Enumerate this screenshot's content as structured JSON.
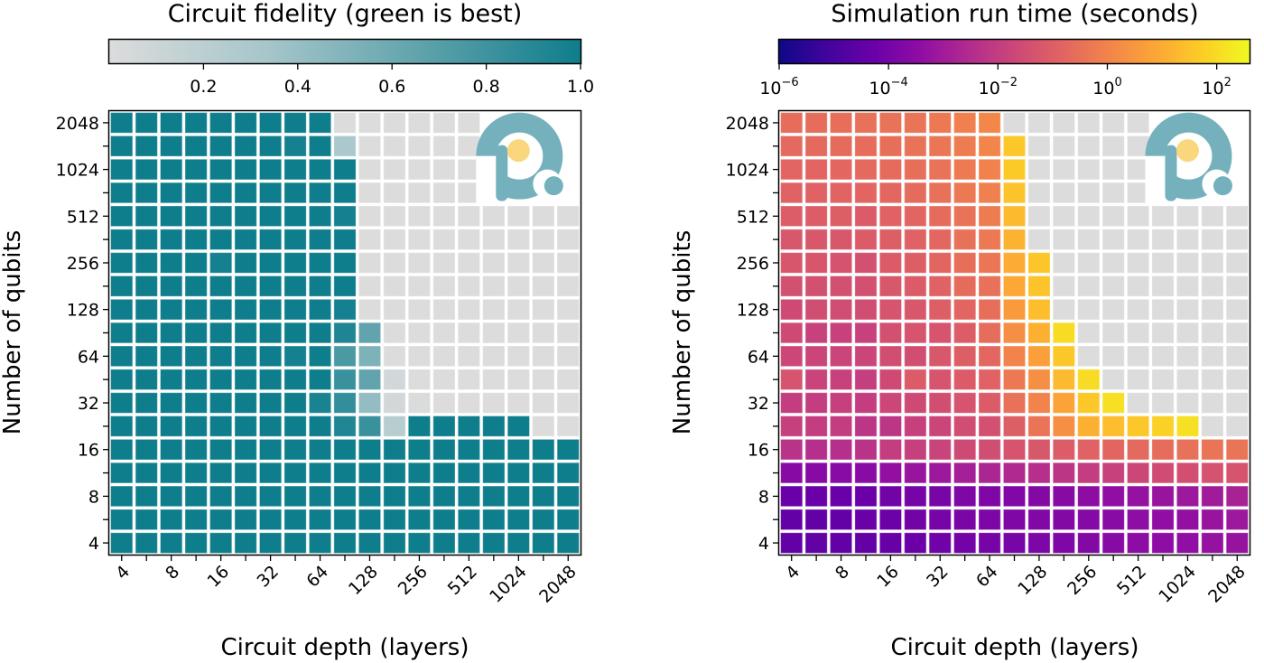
{
  "chart_data": [
    {
      "type": "heatmap",
      "title": "Circuit fidelity (green is best)",
      "xlabel": "Circuit depth (layers)",
      "ylabel": "Number of qubits",
      "x": [
        4,
        5.66,
        8,
        11.31,
        16,
        22.63,
        32,
        45.25,
        64,
        90.51,
        128,
        181.02,
        256,
        362.04,
        512,
        724.08,
        1024,
        1448.15,
        2048
      ],
      "y": [
        2048,
        1448.15,
        1024,
        724.08,
        512,
        362.04,
        256,
        181.02,
        128,
        90.51,
        64,
        45.25,
        32,
        22.63,
        16,
        11.31,
        8,
        5.66,
        4
      ],
      "xticks": [
        "4",
        "8",
        "16",
        "32",
        "64",
        "128",
        "256",
        "512",
        "1024",
        "2048"
      ],
      "yticks": [
        "2048",
        "1024",
        "512",
        "256",
        "128",
        "64",
        "32",
        "16",
        "8",
        "4"
      ],
      "missing_value_color": "#dcdcdc",
      "colorbar": {
        "label_position": "top",
        "scale": "linear",
        "range": [
          0.0,
          1.0
        ],
        "ticks": [
          "0.2",
          "0.4",
          "0.6",
          "0.8",
          "1.0"
        ],
        "tick_values": [
          0.2,
          0.4,
          0.6,
          0.8,
          1.0
        ],
        "colors": [
          "#dcdcdc",
          "#a6c6ca",
          "#5ea2ab",
          "#0e7d8c"
        ]
      },
      "values": [
        [
          1,
          1,
          1,
          1,
          1,
          1,
          1,
          1,
          1,
          null,
          null,
          null,
          null,
          null,
          null,
          "logo",
          "logo",
          "logo",
          "logo"
        ],
        [
          1,
          1,
          1,
          1,
          1,
          1,
          1,
          0.97,
          1,
          0.3,
          null,
          null,
          null,
          null,
          null,
          "logo",
          "logo",
          "logo",
          "logo"
        ],
        [
          1,
          1,
          1,
          1,
          1,
          1,
          1,
          1,
          1,
          1,
          null,
          null,
          null,
          null,
          null,
          "logo",
          "logo",
          "logo",
          "logo"
        ],
        [
          1,
          1,
          1,
          1,
          1,
          1,
          1,
          1,
          1,
          1,
          null,
          null,
          null,
          null,
          null,
          "logo",
          "logo",
          "logo",
          "logo"
        ],
        [
          1,
          1,
          1,
          1,
          1,
          1,
          1,
          1,
          1,
          0.97,
          null,
          null,
          null,
          null,
          null,
          null,
          null,
          null,
          null
        ],
        [
          1,
          1,
          1,
          1,
          1,
          1,
          1,
          1,
          1,
          1,
          null,
          null,
          null,
          null,
          null,
          null,
          null,
          null,
          null
        ],
        [
          1,
          1,
          1,
          1,
          0.97,
          1,
          1,
          1,
          1,
          1,
          null,
          null,
          null,
          null,
          null,
          null,
          null,
          null,
          null
        ],
        [
          1,
          1,
          1,
          1,
          1,
          1,
          1,
          1,
          1,
          1,
          null,
          null,
          null,
          null,
          null,
          null,
          null,
          null,
          null
        ],
        [
          1,
          1,
          1,
          1,
          1,
          1,
          1,
          1,
          1,
          0.97,
          null,
          null,
          null,
          null,
          null,
          null,
          null,
          null,
          null
        ],
        [
          1,
          1,
          1,
          1,
          1,
          1,
          1,
          1,
          1,
          0.93,
          0.65,
          null,
          null,
          null,
          null,
          null,
          null,
          null,
          null
        ],
        [
          1,
          1,
          1,
          1,
          1,
          1,
          1,
          0.97,
          1,
          0.75,
          0.52,
          null,
          null,
          null,
          null,
          null,
          null,
          null,
          null
        ],
        [
          1,
          1,
          1,
          1,
          1,
          1,
          1,
          1,
          1,
          0.82,
          0.65,
          0.06,
          null,
          null,
          null,
          null,
          null,
          null,
          null
        ],
        [
          1,
          1,
          1,
          1,
          1,
          1,
          1,
          1,
          0.95,
          0.85,
          0.42,
          0.06,
          0.01,
          null,
          null,
          null,
          null,
          null,
          null
        ],
        [
          1,
          1,
          1,
          1,
          1,
          1,
          1,
          1,
          1,
          0.92,
          0.82,
          0.22,
          1,
          1,
          1,
          1,
          1,
          null,
          null
        ],
        [
          1,
          1,
          1,
          1,
          1,
          1,
          1,
          1,
          1,
          1,
          1,
          1,
          1,
          1,
          1,
          1,
          1,
          1,
          1
        ],
        [
          1,
          1,
          1,
          1,
          1,
          1,
          1,
          1,
          1,
          1,
          1,
          1,
          1,
          1,
          1,
          1,
          1,
          1,
          1
        ],
        [
          1,
          1,
          1,
          1,
          1,
          1,
          1,
          1,
          1,
          1,
          1,
          1,
          1,
          1,
          1,
          1,
          1,
          1,
          1
        ],
        [
          1,
          1,
          1,
          1,
          1,
          1,
          1,
          1,
          1,
          1,
          1,
          1,
          1,
          1,
          1,
          1,
          1,
          1,
          1
        ],
        [
          1,
          1,
          1,
          1,
          1,
          1,
          1,
          1,
          1,
          1,
          1,
          1,
          1,
          1,
          1,
          1,
          1,
          1,
          1
        ]
      ]
    },
    {
      "type": "heatmap",
      "title": "Simulation run time (seconds)",
      "xlabel": "Circuit depth (layers)",
      "ylabel": "Number of qubits",
      "x": [
        4,
        5.66,
        8,
        11.31,
        16,
        22.63,
        32,
        45.25,
        64,
        90.51,
        128,
        181.02,
        256,
        362.04,
        512,
        724.08,
        1024,
        1448.15,
        2048
      ],
      "y": [
        2048,
        1448.15,
        1024,
        724.08,
        512,
        362.04,
        256,
        181.02,
        128,
        90.51,
        64,
        45.25,
        32,
        22.63,
        16,
        11.31,
        8,
        5.66,
        4
      ],
      "xticks": [
        "4",
        "8",
        "16",
        "32",
        "64",
        "128",
        "256",
        "512",
        "1024",
        "2048"
      ],
      "yticks": [
        "2048",
        "1024",
        "512",
        "256",
        "128",
        "64",
        "32",
        "16",
        "8",
        "4"
      ],
      "missing_value_color": "#dcdcdc",
      "colorbar": {
        "label_position": "top",
        "scale": "log",
        "range": [
          1e-06,
          400
        ],
        "log10_range": [
          -6,
          2.6
        ],
        "ticks": [
          {
            "base": "10",
            "exp": "−6"
          },
          {
            "base": "10",
            "exp": "−4"
          },
          {
            "base": "10",
            "exp": "−2"
          },
          {
            "base": "10",
            "exp": "0"
          },
          {
            "base": "10",
            "exp": "2"
          }
        ],
        "tick_values": [
          1e-06,
          0.0001,
          0.01,
          1,
          100
        ],
        "colormap": "plasma"
      },
      "log10_values": [
        [
          -0.6,
          -0.6,
          -0.55,
          -0.5,
          -0.45,
          -0.4,
          -0.3,
          -0.1,
          0.1,
          null,
          null,
          null,
          null,
          null,
          null,
          "logo",
          "logo",
          "logo",
          "logo"
        ],
        [
          -0.7,
          -0.7,
          -0.65,
          -0.6,
          -0.55,
          -0.45,
          -0.35,
          -0.2,
          0.05,
          1.6,
          null,
          null,
          null,
          null,
          null,
          "logo",
          "logo",
          "logo",
          "logo"
        ],
        [
          -0.8,
          -0.8,
          -0.75,
          -0.7,
          -0.65,
          -0.55,
          -0.45,
          -0.25,
          -0.05,
          1.65,
          null,
          null,
          null,
          null,
          null,
          "logo",
          "logo",
          "logo",
          "logo"
        ],
        [
          -0.9,
          -0.9,
          -0.85,
          -0.8,
          -0.75,
          -0.65,
          -0.5,
          -0.3,
          -0.1,
          1.5,
          null,
          null,
          null,
          null,
          null,
          "logo",
          "logo",
          "logo",
          "logo"
        ],
        [
          -1.05,
          -1.05,
          -1.0,
          -1.1,
          -0.9,
          -0.8,
          -0.65,
          -0.45,
          -0.2,
          1.3,
          null,
          null,
          null,
          null,
          null,
          null,
          null,
          null,
          null
        ],
        [
          -1.2,
          -1.2,
          -1.2,
          -1.1,
          -1.0,
          -0.9,
          -0.75,
          -0.5,
          -0.3,
          1.15,
          null,
          null,
          null,
          null,
          null,
          null,
          null,
          null,
          null
        ],
        [
          -1.25,
          -1.25,
          -1.35,
          -1.4,
          -1.1,
          -1.0,
          -0.8,
          -0.55,
          -0.35,
          1.0,
          1.55,
          null,
          null,
          null,
          null,
          null,
          null,
          null,
          null
        ],
        [
          -1.4,
          -1.4,
          -1.4,
          -1.4,
          -1.2,
          -1.1,
          -0.9,
          -0.65,
          -0.5,
          0.9,
          1.5,
          null,
          null,
          null,
          null,
          null,
          null,
          null,
          null
        ],
        [
          -1.6,
          -1.5,
          -1.5,
          -1.5,
          -1.3,
          -1.2,
          -1.0,
          -0.8,
          -0.55,
          0.6,
          1.4,
          null,
          null,
          null,
          null,
          null,
          null,
          null,
          null
        ],
        [
          -1.6,
          -1.85,
          -1.85,
          -1.85,
          -1.4,
          -1.3,
          -1.3,
          -1.05,
          -0.6,
          0.3,
          1.1,
          2.0,
          null,
          null,
          null,
          null,
          null,
          null,
          null
        ],
        [
          -1.7,
          -1.75,
          -1.75,
          -1.75,
          -1.5,
          -1.5,
          -1.2,
          -1.0,
          -0.75,
          0.0,
          0.7,
          1.6,
          null,
          null,
          null,
          null,
          null,
          null,
          null
        ],
        [
          -1.3,
          -1.8,
          -1.85,
          -1.95,
          -1.6,
          -1.1,
          -1.3,
          -1.1,
          -0.9,
          -0.3,
          0.3,
          1.3,
          2.0,
          null,
          null,
          null,
          null,
          null,
          null
        ],
        [
          -2.0,
          -2.0,
          -1.9,
          -2.0,
          -1.7,
          -1.6,
          -1.5,
          -1.3,
          -1.1,
          -0.5,
          0.0,
          0.8,
          1.6,
          2.1,
          null,
          null,
          null,
          null,
          null
        ],
        [
          -1.9,
          -2.0,
          -2.0,
          -2.2,
          -2.2,
          -1.9,
          -1.75,
          -1.5,
          -1.4,
          -1.0,
          -0.4,
          0.3,
          1.1,
          1.4,
          1.6,
          1.8,
          2.1,
          null,
          null
        ],
        [
          -2.3,
          -2.4,
          -2.4,
          -2.3,
          -2.0,
          -1.9,
          -1.8,
          -1.6,
          -1.5,
          -1.3,
          -1.2,
          -1.05,
          -0.9,
          -0.8,
          -0.7,
          -0.6,
          -0.5,
          -0.4,
          -0.4
        ],
        [
          -3.6,
          -3.6,
          -3.55,
          -3.55,
          -3.35,
          -3.2,
          -3.1,
          -2.9,
          -2.7,
          -2.6,
          -2.4,
          -2.2,
          -2.0,
          -1.85,
          -1.7,
          -1.55,
          -1.45,
          -1.35,
          -1.3
        ],
        [
          -4.3,
          -4.3,
          -4.3,
          -4.25,
          -4.1,
          -4.0,
          -3.95,
          -3.8,
          -3.8,
          -3.75,
          -3.7,
          -3.6,
          -3.5,
          -3.4,
          -3.3,
          -3.2,
          -3.1,
          -3.0,
          -2.8
        ],
        [
          -4.4,
          -4.45,
          -4.4,
          -4.3,
          -4.2,
          -4.1,
          -4.0,
          -3.9,
          -3.85,
          -3.8,
          -3.75,
          -3.7,
          -3.65,
          -3.55,
          -3.45,
          -3.4,
          -3.35,
          -3.2,
          -3.1
        ],
        [
          -4.45,
          -4.45,
          -4.45,
          -4.4,
          -4.35,
          -4.25,
          -4.15,
          -4.05,
          -4.0,
          -3.95,
          -3.85,
          -3.8,
          -3.7,
          -3.6,
          -3.5,
          -3.45,
          -3.4,
          -3.3,
          -3.25
        ]
      ]
    }
  ],
  "logo": {
    "name": "brand-logo",
    "ring_color": "#74b1bd",
    "dot_color": "#fad77c"
  }
}
